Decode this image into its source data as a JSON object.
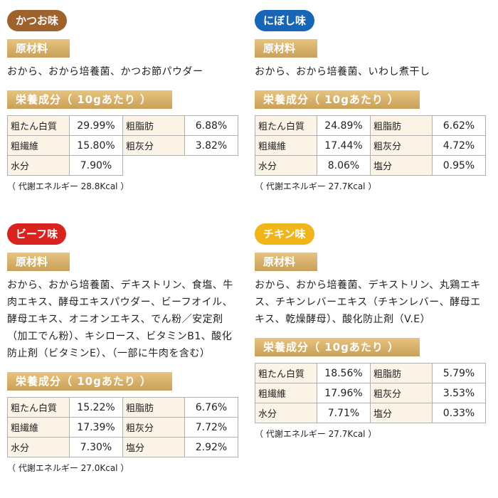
{
  "colors": {
    "katsuo": "#a0622d",
    "niboshi": "#1665b6",
    "beef": "#d9231f",
    "chicken": "#f0b51b",
    "section_bar": "#c8a05a",
    "table_key_bg": "#faf3e6"
  },
  "panels": [
    {
      "flavor": "かつお味",
      "materials_label": "原材料",
      "ingredients": "おから、おから培養菌、かつお節パウダー",
      "nutrition_label": "栄養成分（ 10gあたり ）",
      "rows": [
        {
          "k1": "粗たん白質",
          "v1": "29.99%",
          "k2": "粗脂肪",
          "v2": "6.88%"
        },
        {
          "k1": "粗繊維",
          "v1": "15.80%",
          "k2": "粗灰分",
          "v2": "3.82%"
        },
        {
          "k1": "水分",
          "v1": "7.90%",
          "k2": "",
          "v2": ""
        }
      ],
      "energy": "（ 代謝エネルギー 28.8Kcal ）"
    },
    {
      "flavor": "にぼし味",
      "materials_label": "原材料",
      "ingredients": "おから、おから培養菌、いわし煮干し",
      "nutrition_label": "栄養成分（ 10gあたり ）",
      "rows": [
        {
          "k1": "粗たん白質",
          "v1": "24.89%",
          "k2": "粗脂肪",
          "v2": "6.62%"
        },
        {
          "k1": "粗繊維",
          "v1": "17.44%",
          "k2": "粗灰分",
          "v2": "4.72%"
        },
        {
          "k1": "水分",
          "v1": "8.06%",
          "k2": "塩分",
          "v2": "0.95%"
        }
      ],
      "energy": "（ 代謝エネルギー 27.7Kcal ）"
    },
    {
      "flavor": "ビーフ味",
      "materials_label": "原材料",
      "ingredients": "おから、おから培養菌、デキストリン、食塩、牛肉エキス、酵母エキスパウダー、ビーフオイル、酵母エキス、オニオンエキス、でん粉／安定剤（加工でん粉）、キシロース、ビタミンB1、酸化防止剤（ビタミンE）、（一部に牛肉を含む）",
      "nutrition_label": "栄養成分（ 10gあたり ）",
      "rows": [
        {
          "k1": "粗たん白質",
          "v1": "15.22%",
          "k2": "粗脂肪",
          "v2": "6.76%"
        },
        {
          "k1": "粗繊維",
          "v1": "17.39%",
          "k2": "粗灰分",
          "v2": "7.72%"
        },
        {
          "k1": "水分",
          "v1": "7.30%",
          "k2": "塩分",
          "v2": "2.92%"
        }
      ],
      "energy": "（ 代謝エネルギー 27.0Kcal ）"
    },
    {
      "flavor": "チキン味",
      "materials_label": "原材料",
      "ingredients": "おから、おから培養菌、デキストリン、丸鶏エキス、チキンレバーエキス（チキンレバー、酵母エキス、乾燥酵母）、酸化防止剤（V.E）",
      "nutrition_label": "栄養成分（ 10gあたり ）",
      "rows": [
        {
          "k1": "粗たん白質",
          "v1": "18.56%",
          "k2": "粗脂肪",
          "v2": "5.79%"
        },
        {
          "k1": "粗繊維",
          "v1": "17.96%",
          "k2": "粗灰分",
          "v2": "3.53%"
        },
        {
          "k1": "水分",
          "v1": "7.71%",
          "k2": "塩分",
          "v2": "0.33%"
        }
      ],
      "energy": "（ 代謝エネルギー 27.7Kcal ）"
    }
  ]
}
